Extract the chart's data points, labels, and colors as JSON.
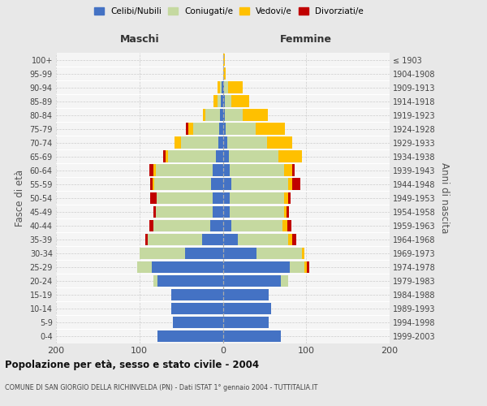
{
  "age_groups": [
    "0-4",
    "5-9",
    "10-14",
    "15-19",
    "20-24",
    "25-29",
    "30-34",
    "35-39",
    "40-44",
    "45-49",
    "50-54",
    "55-59",
    "60-64",
    "65-69",
    "70-74",
    "75-79",
    "80-84",
    "85-89",
    "90-94",
    "95-99",
    "100+"
  ],
  "birth_years": [
    "1999-2003",
    "1994-1998",
    "1989-1993",
    "1984-1988",
    "1979-1983",
    "1974-1978",
    "1969-1973",
    "1964-1968",
    "1959-1963",
    "1954-1958",
    "1949-1953",
    "1944-1948",
    "1939-1943",
    "1934-1938",
    "1929-1933",
    "1924-1928",
    "1919-1923",
    "1914-1918",
    "1909-1913",
    "1904-1908",
    "≤ 1903"
  ],
  "maschi_celibi": [
    78,
    60,
    62,
    62,
    78,
    85,
    45,
    25,
    15,
    12,
    12,
    14,
    12,
    8,
    5,
    4,
    3,
    2,
    1,
    0,
    0
  ],
  "maschi_coniugati": [
    0,
    0,
    0,
    0,
    5,
    18,
    55,
    65,
    68,
    68,
    67,
    68,
    68,
    58,
    45,
    32,
    18,
    4,
    2,
    0,
    0
  ],
  "maschi_vedovi": [
    0,
    0,
    0,
    0,
    0,
    0,
    0,
    0,
    0,
    0,
    0,
    2,
    3,
    3,
    8,
    5,
    3,
    5,
    3,
    0,
    0
  ],
  "maschi_divorziati": [
    0,
    0,
    0,
    0,
    0,
    0,
    0,
    3,
    5,
    3,
    8,
    3,
    5,
    3,
    0,
    3,
    0,
    0,
    0,
    0,
    0
  ],
  "femmine_celibi": [
    70,
    55,
    58,
    55,
    70,
    80,
    40,
    18,
    10,
    8,
    8,
    10,
    8,
    7,
    5,
    3,
    2,
    2,
    1,
    0,
    0
  ],
  "femmine_coniugati": [
    0,
    0,
    0,
    0,
    8,
    18,
    55,
    60,
    62,
    65,
    65,
    68,
    65,
    60,
    48,
    36,
    22,
    8,
    5,
    0,
    0
  ],
  "femmine_vedovi": [
    0,
    0,
    0,
    0,
    0,
    3,
    3,
    5,
    5,
    3,
    5,
    5,
    10,
    28,
    30,
    35,
    30,
    22,
    18,
    3,
    2
  ],
  "femmine_divorziati": [
    0,
    0,
    0,
    0,
    0,
    3,
    0,
    5,
    5,
    3,
    3,
    10,
    3,
    0,
    0,
    0,
    0,
    0,
    0,
    0,
    0
  ],
  "color_celibi": "#4472c4",
  "color_coniugati": "#c5d9a0",
  "color_vedovi": "#ffc000",
  "color_divorziati": "#c00000",
  "title": "Popolazione per età, sesso e stato civile - 2004",
  "subtitle": "COMUNE DI SAN GIORGIO DELLA RICHINVELDA (PN) - Dati ISTAT 1° gennaio 2004 - TUTTITALIA.IT",
  "xlabel_left": "Maschi",
  "xlabel_right": "Femmine",
  "ylabel_left": "Fasce di età",
  "ylabel_right": "Anni di nascita",
  "xlim": 200,
  "background_color": "#e8e8e8",
  "plot_bg_color": "#f5f5f5"
}
